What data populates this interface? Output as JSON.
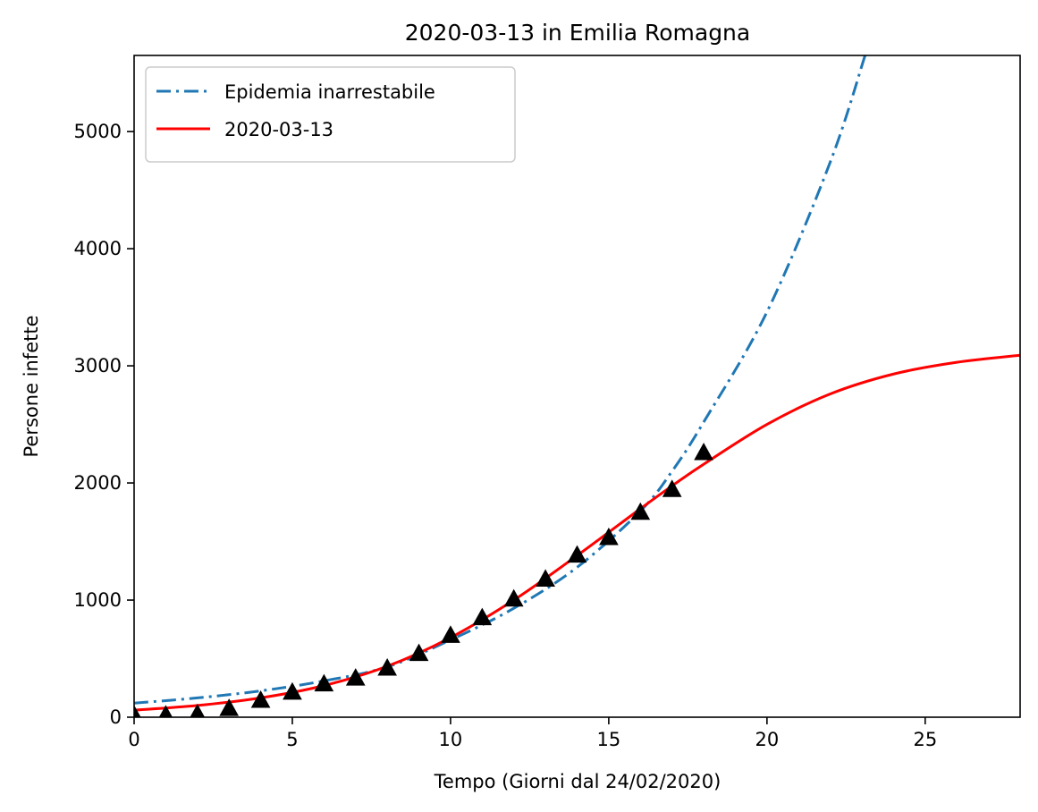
{
  "chart_data": {
    "type": "line",
    "title": "2020-03-13 in Emilia Romagna",
    "xlabel": "Tempo (Giorni dal 24/02/2020)",
    "ylabel": "Persone infette",
    "xlim": [
      0,
      28
    ],
    "ylim": [
      0,
      5650
    ],
    "x_ticks": [
      0,
      5,
      10,
      15,
      20,
      25
    ],
    "y_ticks": [
      0,
      1000,
      2000,
      3000,
      4000,
      5000
    ],
    "grid": false,
    "legend_position": "top-left",
    "series": [
      {
        "name": "Epidemia inarrestabile",
        "style": "dash-dot",
        "color": "#1f77b4",
        "x": [
          0,
          2,
          4,
          6,
          8,
          10,
          12,
          14,
          16,
          17,
          18,
          20,
          22,
          23.1
        ],
        "y": [
          120,
          165,
          225,
          310,
          430,
          660,
          930,
          1280,
          1760,
          2100,
          2520,
          3460,
          4740,
          5650
        ]
      },
      {
        "name": "2020-03-13",
        "style": "solid",
        "color": "#ff0000",
        "x": [
          0,
          2,
          4,
          6,
          8,
          10,
          12,
          14,
          16,
          17,
          18,
          20,
          22,
          24,
          26,
          28
        ],
        "y": [
          60,
          100,
          165,
          270,
          435,
          680,
          1000,
          1380,
          1780,
          1975,
          2160,
          2500,
          2760,
          2930,
          3030,
          3090
        ]
      },
      {
        "name": "",
        "style": "markers",
        "marker": "triangle",
        "color": "#000000",
        "x": [
          0,
          1,
          2,
          3,
          4,
          5,
          6,
          7,
          8,
          9,
          10,
          11,
          12,
          13,
          14,
          15,
          16,
          17,
          18
        ],
        "y": [
          20,
          20,
          30,
          75,
          145,
          215,
          285,
          335,
          420,
          545,
          700,
          850,
          1010,
          1180,
          1385,
          1535,
          1750,
          1945,
          2260
        ]
      }
    ]
  }
}
